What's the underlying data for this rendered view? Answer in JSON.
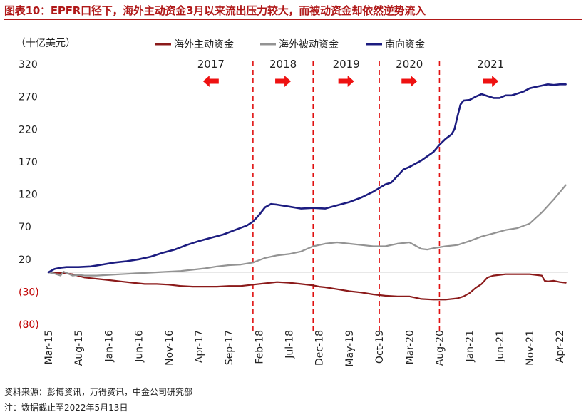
{
  "title": "图表10：EPFR口径下，海外主动资金3月以来流出压力较大，而被动资金却依然逆势流入",
  "source": "资料来源：彭博资讯，万得资讯，中金公司研究部",
  "note": "注：数据截止至2022年5月13日",
  "chart_data": {
    "type": "line",
    "unit_label": "（十亿美元）",
    "ylim": [
      -80,
      320
    ],
    "y_ticks": [
      {
        "value": 320,
        "label": "320"
      },
      {
        "value": 270,
        "label": "270"
      },
      {
        "value": 220,
        "label": "220"
      },
      {
        "value": 170,
        "label": "170"
      },
      {
        "value": 120,
        "label": "120"
      },
      {
        "value": 70,
        "label": "70"
      },
      {
        "value": 20,
        "label": "20"
      },
      {
        "value": -30,
        "label": "(30)"
      },
      {
        "value": -80,
        "label": "(80)"
      }
    ],
    "x_start": "2015-03",
    "x_end": "2022-05",
    "x_ticks": [
      {
        "t": 0,
        "label": "Mar-15"
      },
      {
        "t": 5,
        "label": "Aug-15"
      },
      {
        "t": 10,
        "label": "Jan-16"
      },
      {
        "t": 15,
        "label": "Jun-16"
      },
      {
        "t": 20,
        "label": "Nov-16"
      },
      {
        "t": 25,
        "label": "Apr-17"
      },
      {
        "t": 30,
        "label": "Sep-17"
      },
      {
        "t": 35,
        "label": "Feb-18"
      },
      {
        "t": 40,
        "label": "Jul-18"
      },
      {
        "t": 45,
        "label": "Dec-18"
      },
      {
        "t": 50,
        "label": "May-19"
      },
      {
        "t": 55,
        "label": "Oct-19"
      },
      {
        "t": 60,
        "label": "Mar-20"
      },
      {
        "t": 65,
        "label": "Aug-20"
      },
      {
        "t": 70,
        "label": "Jan-21"
      },
      {
        "t": 75,
        "label": "Jun-21"
      },
      {
        "t": 80,
        "label": "Nov-21"
      },
      {
        "t": 85,
        "label": "Apr-22"
      }
    ],
    "x_max": 86.4,
    "dividers": [
      34,
      44,
      55,
      65
    ],
    "periods": [
      {
        "label": "2017",
        "t": 27,
        "arrow": "left"
      },
      {
        "label": "2018",
        "t": 39,
        "arrow": "right"
      },
      {
        "label": "2019",
        "t": 49.5,
        "arrow": "right"
      },
      {
        "label": "2020",
        "t": 60,
        "arrow": "right"
      },
      {
        "label": "2021",
        "t": 73.5,
        "arrow": "right"
      }
    ],
    "series": [
      {
        "name": "海外主动资金",
        "color": "#8b1a1a",
        "points": [
          [
            0,
            0
          ],
          [
            2,
            -1
          ],
          [
            4,
            -3
          ],
          [
            6,
            -8
          ],
          [
            8,
            -10
          ],
          [
            10,
            -12
          ],
          [
            12,
            -14
          ],
          [
            14,
            -16
          ],
          [
            16,
            -18
          ],
          [
            18,
            -18
          ],
          [
            20,
            -19
          ],
          [
            22,
            -21
          ],
          [
            24,
            -22
          ],
          [
            26,
            -22
          ],
          [
            28,
            -22
          ],
          [
            30,
            -21
          ],
          [
            32,
            -21
          ],
          [
            34,
            -19
          ],
          [
            36,
            -17
          ],
          [
            38,
            -15
          ],
          [
            40,
            -16
          ],
          [
            42,
            -18
          ],
          [
            44,
            -20
          ],
          [
            45,
            -22
          ],
          [
            46,
            -23
          ],
          [
            48,
            -26
          ],
          [
            50,
            -29
          ],
          [
            52,
            -31
          ],
          [
            54,
            -34
          ],
          [
            56,
            -36
          ],
          [
            58,
            -37
          ],
          [
            60,
            -37
          ],
          [
            61,
            -39
          ],
          [
            62,
            -41
          ],
          [
            64,
            -42
          ],
          [
            66,
            -42
          ],
          [
            68,
            -40
          ],
          [
            69,
            -37
          ],
          [
            70,
            -32
          ],
          [
            71,
            -24
          ],
          [
            72,
            -18
          ],
          [
            73,
            -8
          ],
          [
            74,
            -5
          ],
          [
            76,
            -3
          ],
          [
            78,
            -3
          ],
          [
            80,
            -3
          ],
          [
            82,
            -5
          ],
          [
            82.5,
            -13
          ],
          [
            83,
            -14
          ],
          [
            84,
            -13
          ],
          [
            85,
            -15
          ],
          [
            86,
            -16
          ]
        ]
      },
      {
        "name": "海外被动资金",
        "color": "#939393",
        "points": [
          [
            0,
            0
          ],
          [
            1,
            -2
          ],
          [
            2,
            -5
          ],
          [
            2.5,
            1
          ],
          [
            3,
            -1
          ],
          [
            4,
            -5
          ],
          [
            5,
            -4
          ],
          [
            6,
            -5
          ],
          [
            8,
            -5
          ],
          [
            10,
            -4
          ],
          [
            12,
            -3
          ],
          [
            14,
            -2
          ],
          [
            16,
            -1
          ],
          [
            18,
            0
          ],
          [
            20,
            1
          ],
          [
            22,
            2
          ],
          [
            24,
            4
          ],
          [
            26,
            6
          ],
          [
            28,
            9
          ],
          [
            30,
            11
          ],
          [
            32,
            12
          ],
          [
            34,
            15
          ],
          [
            36,
            22
          ],
          [
            38,
            26
          ],
          [
            40,
            28
          ],
          [
            42,
            32
          ],
          [
            44,
            40
          ],
          [
            46,
            44
          ],
          [
            48,
            46
          ],
          [
            50,
            44
          ],
          [
            52,
            42
          ],
          [
            54,
            40
          ],
          [
            56,
            40
          ],
          [
            58,
            44
          ],
          [
            60,
            46
          ],
          [
            61,
            41
          ],
          [
            62,
            36
          ],
          [
            63,
            35
          ],
          [
            64,
            37
          ],
          [
            66,
            40
          ],
          [
            68,
            42
          ],
          [
            70,
            48
          ],
          [
            72,
            55
          ],
          [
            74,
            60
          ],
          [
            76,
            65
          ],
          [
            78,
            68
          ],
          [
            80,
            75
          ],
          [
            82,
            92
          ],
          [
            84,
            112
          ],
          [
            86,
            134
          ]
        ]
      },
      {
        "name": "南向资金",
        "color": "#1c1c80",
        "points": [
          [
            0,
            0
          ],
          [
            1,
            5
          ],
          [
            2,
            7
          ],
          [
            3,
            8
          ],
          [
            5,
            8
          ],
          [
            7,
            9
          ],
          [
            9,
            12
          ],
          [
            11,
            15
          ],
          [
            13,
            17
          ],
          [
            15,
            20
          ],
          [
            17,
            24
          ],
          [
            19,
            30
          ],
          [
            21,
            35
          ],
          [
            23,
            42
          ],
          [
            25,
            48
          ],
          [
            27,
            53
          ],
          [
            29,
            58
          ],
          [
            31,
            65
          ],
          [
            33,
            72
          ],
          [
            34,
            78
          ],
          [
            35,
            88
          ],
          [
            36,
            100
          ],
          [
            37,
            105
          ],
          [
            38,
            104
          ],
          [
            40,
            101
          ],
          [
            42,
            98
          ],
          [
            44,
            99
          ],
          [
            46,
            98
          ],
          [
            48,
            103
          ],
          [
            50,
            108
          ],
          [
            52,
            115
          ],
          [
            54,
            124
          ],
          [
            56,
            135
          ],
          [
            57,
            138
          ],
          [
            58,
            148
          ],
          [
            59,
            158
          ],
          [
            60,
            162
          ],
          [
            62,
            172
          ],
          [
            64,
            185
          ],
          [
            65,
            196
          ],
          [
            66,
            205
          ],
          [
            67,
            212
          ],
          [
            67.5,
            220
          ],
          [
            68,
            240
          ],
          [
            68.5,
            258
          ],
          [
            69,
            264
          ],
          [
            70,
            265
          ],
          [
            71,
            270
          ],
          [
            72,
            274
          ],
          [
            73,
            271
          ],
          [
            74,
            268
          ],
          [
            75,
            268
          ],
          [
            76,
            272
          ],
          [
            77,
            272
          ],
          [
            78,
            275
          ],
          [
            79,
            278
          ],
          [
            80,
            283
          ],
          [
            81,
            285
          ],
          [
            82,
            287
          ],
          [
            83,
            289
          ],
          [
            84,
            288
          ],
          [
            85,
            289
          ],
          [
            86,
            289
          ]
        ]
      }
    ]
  }
}
